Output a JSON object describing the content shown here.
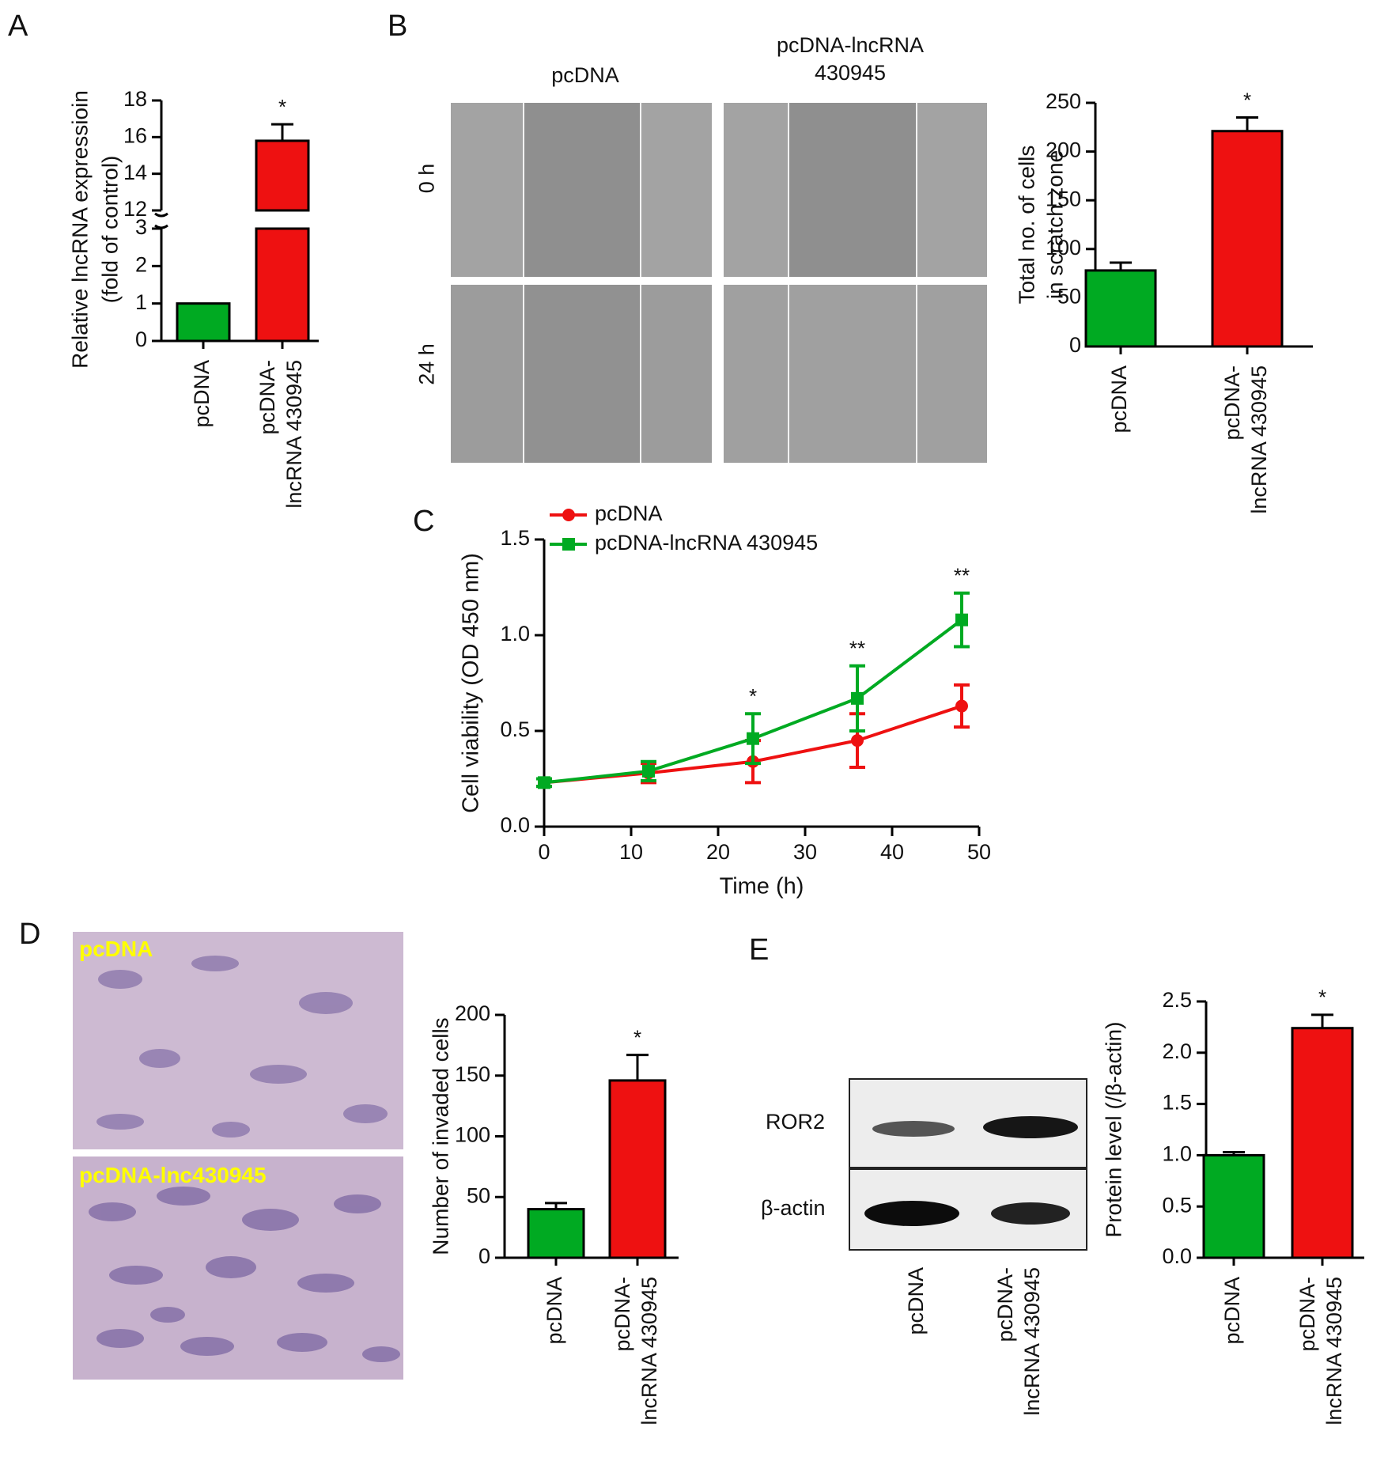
{
  "panels": {
    "a": "A",
    "b": "B",
    "c": "C",
    "d": "D",
    "e": "E"
  },
  "colors": {
    "pcDNA_bar": "#00aa22",
    "lncRNA_bar": "#ee1111",
    "axis": "#000000"
  },
  "micrographs": {
    "wound_columns": [
      "pcDNA",
      "pcDNA-lncRNA\n430945"
    ],
    "wound_rows": [
      "0 h",
      "24 h"
    ],
    "transwell_labels": [
      "pcDNA",
      "pcDNA-lnc430945"
    ]
  },
  "western_blot": {
    "bands": [
      "ROR2",
      "β-actin"
    ],
    "lanes": [
      "pcDNA",
      "pcDNA-\nlncRNA 430945"
    ]
  },
  "chart_data": [
    {
      "id": "A",
      "type": "bar",
      "categories": [
        "pcDNA",
        "pcDNA-\nlncRNA 430945"
      ],
      "values": [
        1,
        15.8
      ],
      "errors": [
        0,
        0.9
      ],
      "significance": [
        "",
        "*"
      ],
      "ylabel": "Relative lncRNA expressioin\n(fold of control)",
      "axis_break": {
        "lower": [
          0,
          3
        ],
        "upper": [
          12,
          18
        ]
      },
      "yticks_lower": [
        0,
        1,
        2,
        3
      ],
      "yticks_upper": [
        12,
        14,
        16,
        18
      ]
    },
    {
      "id": "B",
      "type": "bar",
      "categories": [
        "pcDNA",
        "pcDNA-\nlncRNA 430945"
      ],
      "values": [
        78,
        221
      ],
      "errors": [
        8,
        14
      ],
      "significance": [
        "",
        "*"
      ],
      "ylabel": "Total no. of cells\nin scratch zone",
      "ylim": [
        0,
        250
      ],
      "yticks": [
        0,
        50,
        100,
        150,
        200,
        250
      ]
    },
    {
      "id": "C",
      "type": "line",
      "xlabel": "Time (h)",
      "ylabel": "Cell viability (OD 450 nm)",
      "xlim": [
        0,
        50
      ],
      "ylim": [
        0,
        1.5
      ],
      "xticks": [
        0,
        10,
        20,
        30,
        40,
        50
      ],
      "yticks": [
        "0.0",
        "0.5",
        "1.0",
        "1.5"
      ],
      "x": [
        0,
        12,
        24,
        36,
        48
      ],
      "series": [
        {
          "name": "pcDNA",
          "values": [
            0.23,
            0.28,
            0.34,
            0.45,
            0.63
          ],
          "errors": [
            0.02,
            0.05,
            0.11,
            0.14,
            0.11
          ],
          "marker": "circle"
        },
        {
          "name": "pcDNA-lncRNA 430945",
          "values": [
            0.23,
            0.29,
            0.46,
            0.67,
            1.08
          ],
          "errors": [
            0.02,
            0.05,
            0.13,
            0.17,
            0.14
          ],
          "marker": "square"
        }
      ],
      "significance": [
        "",
        "",
        "*",
        "**",
        "**"
      ],
      "legend": "top-left"
    },
    {
      "id": "D",
      "type": "bar",
      "categories": [
        "pcDNA",
        "pcDNA-\nlncRNA 430945"
      ],
      "values": [
        40,
        146
      ],
      "errors": [
        5,
        21
      ],
      "significance": [
        "",
        "*"
      ],
      "ylabel": "Number of invaded cells",
      "ylim": [
        0,
        200
      ],
      "yticks": [
        0,
        50,
        100,
        150,
        200
      ]
    },
    {
      "id": "E",
      "type": "bar",
      "categories": [
        "pcDNA",
        "pcDNA-\nlncRNA 430945"
      ],
      "values": [
        1.0,
        2.24
      ],
      "errors": [
        0.03,
        0.13
      ],
      "significance": [
        "",
        "*"
      ],
      "ylabel": "Protein level (/β-actin)",
      "ylim": [
        0,
        2.5
      ],
      "yticks": [
        "0.0",
        "0.5",
        "1.0",
        "1.5",
        "2.0",
        "2.5"
      ]
    }
  ]
}
